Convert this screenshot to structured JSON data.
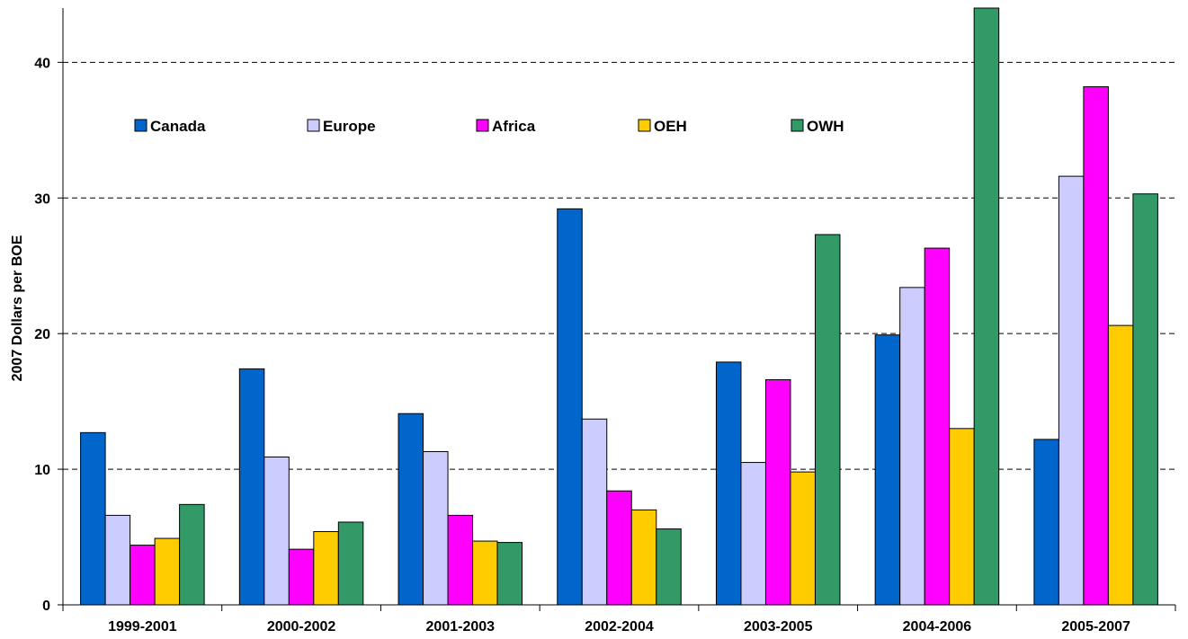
{
  "chart_data": {
    "type": "bar",
    "ylabel": "2007 Dollars per BOE",
    "xlabel": "",
    "ylim": [
      0,
      44
    ],
    "yticks": [
      0,
      10,
      20,
      30,
      40
    ],
    "grid": "horizontal dashed",
    "legend_position": "top-left inside",
    "categories": [
      "1999-2001",
      "2000-2002",
      "2001-2003",
      "2002-2004",
      "2003-2005",
      "2004-2006",
      "2005-2007"
    ],
    "series": [
      {
        "name": "Canada",
        "color": "#0066CC",
        "values": [
          12.7,
          17.4,
          14.1,
          29.2,
          17.9,
          19.9,
          12.2
        ]
      },
      {
        "name": "Europe",
        "color": "#CCCCFF",
        "values": [
          6.6,
          10.9,
          11.3,
          13.7,
          10.5,
          23.4,
          31.6
        ]
      },
      {
        "name": "Africa",
        "color": "#FF00FF",
        "values": [
          4.4,
          4.1,
          6.6,
          8.4,
          16.6,
          26.3,
          38.2
        ]
      },
      {
        "name": "OEH",
        "color": "#FFCC00",
        "values": [
          4.9,
          5.4,
          4.7,
          7.0,
          9.8,
          13.0,
          20.6
        ]
      },
      {
        "name": "OWH",
        "color": "#339966",
        "values": [
          7.4,
          6.1,
          4.6,
          5.6,
          27.3,
          44.0,
          30.3
        ]
      }
    ]
  }
}
